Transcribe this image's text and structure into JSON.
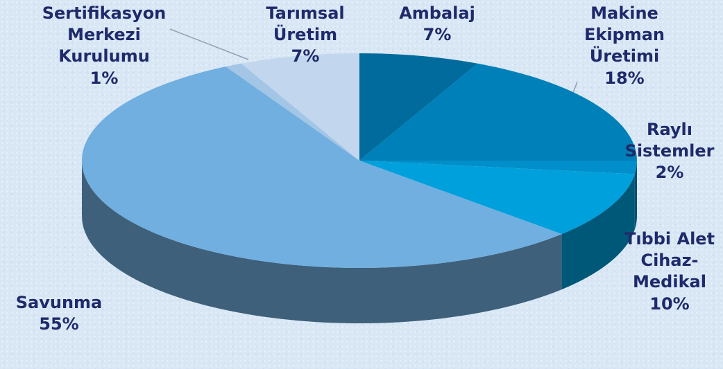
{
  "chart_data": {
    "type": "pie",
    "categories": [
      "Ambalaj",
      "Makine Ekipman Üretimi",
      "Raylı Sistemler",
      "Tıbbi Alet Cihaz-Medikal",
      "Savunma",
      "Sertifikasyon Merkezi Kurulumu",
      "Tarımsal Üretim"
    ],
    "values": [
      7,
      18,
      2,
      10,
      55,
      1,
      7
    ],
    "value_labels": [
      "7%",
      "18%",
      "2%",
      "10%",
      "55%",
      "1%",
      "7%"
    ],
    "colors": [
      "#006b9c",
      "#0080b8",
      "#008fca",
      "#00a0dc",
      "#70afdf",
      "#a3c5e6",
      "#c2d7ed"
    ]
  }
}
